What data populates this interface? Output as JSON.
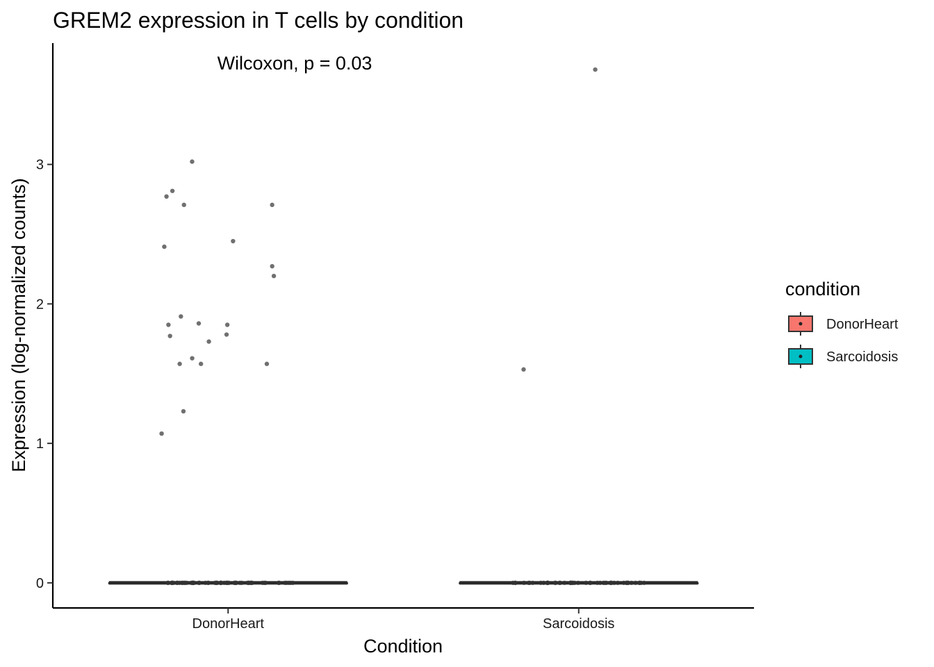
{
  "chart_data": {
    "type": "boxplot",
    "title": "GREM2 expression in T cells by condition",
    "xlabel": "Condition",
    "ylabel": "Expression (log-normalized counts)",
    "categories": [
      "DonorHeart",
      "Sarcoidosis"
    ],
    "ylim": [
      -0.18,
      3.87
    ],
    "yticks": [
      0,
      1,
      2,
      3
    ],
    "grid": false,
    "annotation": "Wilcoxon, p = 0.03",
    "legend": {
      "title": "condition",
      "position": "right",
      "entries": [
        {
          "label": "DonorHeart",
          "color": "#F8766D"
        },
        {
          "label": "Sarcoidosis",
          "color": "#00BFC4"
        }
      ]
    },
    "boxes": [
      {
        "category": "DonorHeart",
        "median": 0,
        "q1": 0,
        "q3": 0,
        "whisker_low": 0,
        "whisker_high": 0
      },
      {
        "category": "Sarcoidosis",
        "median": 0,
        "q1": 0,
        "q3": 0,
        "whisker_low": 0,
        "whisker_high": 0
      }
    ],
    "points": [
      {
        "category": "DonorHeart",
        "values": [
          3.02,
          2.71,
          2.71,
          2.77,
          2.81,
          2.41,
          2.45,
          2.27,
          2.2,
          1.91,
          1.85,
          1.85,
          1.86,
          1.78,
          1.77,
          1.73,
          1.61,
          1.57,
          1.57,
          1.57,
          1.23,
          1.07
        ]
      },
      {
        "category": "Sarcoidosis",
        "values": [
          3.68,
          1.53
        ]
      }
    ],
    "zero_points": {
      "DonorHeart": 60,
      "Sarcoidosis": 50
    }
  }
}
